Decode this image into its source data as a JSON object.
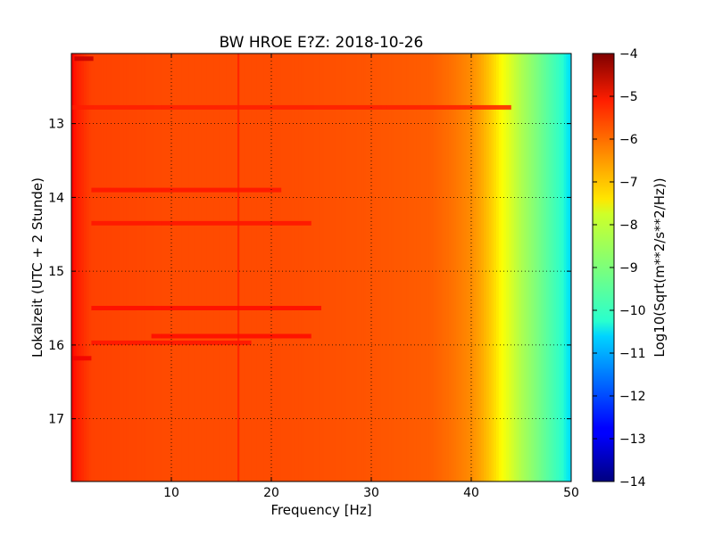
{
  "chart_data": {
    "type": "heatmap",
    "title": "BW HROE E?Z: 2018-10-26",
    "xlabel": "Frequency [Hz]",
    "ylabel": "Lokalzeit (UTC + 2 Stunde)",
    "xlim": [
      0,
      50
    ],
    "ylim": [
      17.85,
      12.05
    ],
    "x_ticks": [
      10,
      20,
      30,
      40,
      50
    ],
    "y_ticks": [
      13,
      14,
      15,
      16,
      17
    ],
    "grid": true,
    "colormap": "jet",
    "colorbar": {
      "label": "Log10(Sqrt(m**2/s**2/Hz))",
      "range": [
        -14,
        -4
      ],
      "ticks": [
        -4,
        -5,
        -6,
        -7,
        -8,
        -9,
        -10,
        -11,
        -12,
        -13,
        -14
      ]
    },
    "level_profile": {
      "frequency_hz": [
        0,
        0.5,
        2,
        10,
        20,
        30,
        36,
        38,
        40,
        41,
        42,
        43,
        44,
        45,
        46,
        47,
        48,
        49,
        50
      ],
      "log10_amplitude": [
        -4.9,
        -5.2,
        -5.6,
        -5.7,
        -5.7,
        -5.8,
        -5.9,
        -6.1,
        -6.4,
        -6.7,
        -7.1,
        -7.6,
        -8.1,
        -8.6,
        -9.0,
        -9.4,
        -9.8,
        -10.2,
        -10.6
      ]
    },
    "features": [
      {
        "frequency_hz": 16.7,
        "log10_amplitude": -5.2,
        "kind": "persistent line"
      },
      {
        "time_h": 12.12,
        "freq_range_hz": [
          0.3,
          2.2
        ],
        "log10_amplitude": -4.5,
        "kind": "burst"
      },
      {
        "time_h": 12.78,
        "freq_range_hz": [
          0,
          44
        ],
        "log10_amplitude": -5.2,
        "kind": "broadband band"
      },
      {
        "time_h": 13.9,
        "freq_range_hz": [
          2,
          21
        ],
        "log10_amplitude": -5.1,
        "kind": "broadband band"
      },
      {
        "time_h": 14.35,
        "freq_range_hz": [
          2,
          24
        ],
        "log10_amplitude": -5.1,
        "kind": "broadband band"
      },
      {
        "time_h": 15.5,
        "freq_range_hz": [
          2,
          25
        ],
        "log10_amplitude": -5.0,
        "kind": "broadband band"
      },
      {
        "time_h": 15.88,
        "freq_range_hz": [
          8,
          24
        ],
        "log10_amplitude": -5.0,
        "kind": "broadband band"
      },
      {
        "time_h": 15.97,
        "freq_range_hz": [
          2,
          18
        ],
        "log10_amplitude": -5.1,
        "kind": "broadband band"
      },
      {
        "time_h": 16.18,
        "freq_range_hz": [
          0,
          2
        ],
        "log10_amplitude": -4.8,
        "kind": "burst"
      }
    ]
  }
}
